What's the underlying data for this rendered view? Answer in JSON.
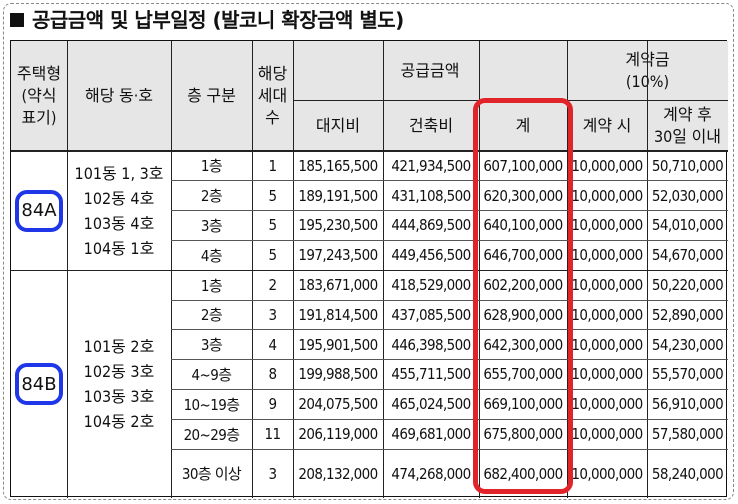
{
  "title": "공급금액 및 납부일정 (발코니 확장금액 별도)",
  "headers": {
    "unit_type": "주택형\n(약식\n표기)",
    "unit_no": "해당 동·호",
    "floor": "층 구분",
    "households": "해당\n세대수",
    "supply_group": "공급금액",
    "land": "대지비",
    "building": "건축비",
    "total": "계",
    "deposit_group": "계약금\n(10%)",
    "at_contract": "계약 시",
    "after_30": "계약 후\n30일 이내"
  },
  "groups": [
    {
      "type": "84A",
      "units": "101동 1, 3호\n102동 4호\n103동 4호\n104동 1호",
      "rows": [
        {
          "floor": "1층",
          "count": "1",
          "land": "185,165,500",
          "building": "421,934,500",
          "total": "607,100,000",
          "contract": "10,000,000",
          "after30": "50,710,000"
        },
        {
          "floor": "2층",
          "count": "5",
          "land": "189,191,500",
          "building": "431,108,500",
          "total": "620,300,000",
          "contract": "10,000,000",
          "after30": "52,030,000"
        },
        {
          "floor": "3층",
          "count": "5",
          "land": "195,230,500",
          "building": "444,869,500",
          "total": "640,100,000",
          "contract": "10,000,000",
          "after30": "54,010,000"
        },
        {
          "floor": "4층",
          "count": "5",
          "land": "197,243,500",
          "building": "449,456,500",
          "total": "646,700,000",
          "contract": "10,000,000",
          "after30": "54,670,000"
        }
      ]
    },
    {
      "type": "84B",
      "units": "101동 2호\n102동 3호\n103동 3호\n104동 2호",
      "rows": [
        {
          "floor": "1층",
          "count": "2",
          "land": "183,671,000",
          "building": "418,529,000",
          "total": "602,200,000",
          "contract": "10,000,000",
          "after30": "50,220,000"
        },
        {
          "floor": "2층",
          "count": "3",
          "land": "191,814,500",
          "building": "437,085,500",
          "total": "628,900,000",
          "contract": "10,000,000",
          "after30": "52,890,000"
        },
        {
          "floor": "3층",
          "count": "4",
          "land": "195,901,500",
          "building": "446,398,500",
          "total": "642,300,000",
          "contract": "10,000,000",
          "after30": "54,230,000"
        },
        {
          "floor": "4~9층",
          "count": "8",
          "land": "199,988,500",
          "building": "455,711,500",
          "total": "655,700,000",
          "contract": "10,000,000",
          "after30": "55,570,000"
        },
        {
          "floor": "10~19층",
          "count": "9",
          "land": "204,075,500",
          "building": "465,024,500",
          "total": "669,100,000",
          "contract": "10,000,000",
          "after30": "56,910,000"
        },
        {
          "floor": "20~29층",
          "count": "11",
          "land": "206,119,000",
          "building": "469,681,000",
          "total": "675,800,000",
          "contract": "10,000,000",
          "after30": "57,580,000"
        },
        {
          "floor": "30층 이상",
          "count": "3",
          "land": "208,132,000",
          "building": "474,268,000",
          "total": "682,400,000",
          "contract": "10,000,000",
          "after30": "58,240,000"
        }
      ]
    }
  ],
  "highlight_color": "#e0242a",
  "badge_color": "#1f37e6"
}
